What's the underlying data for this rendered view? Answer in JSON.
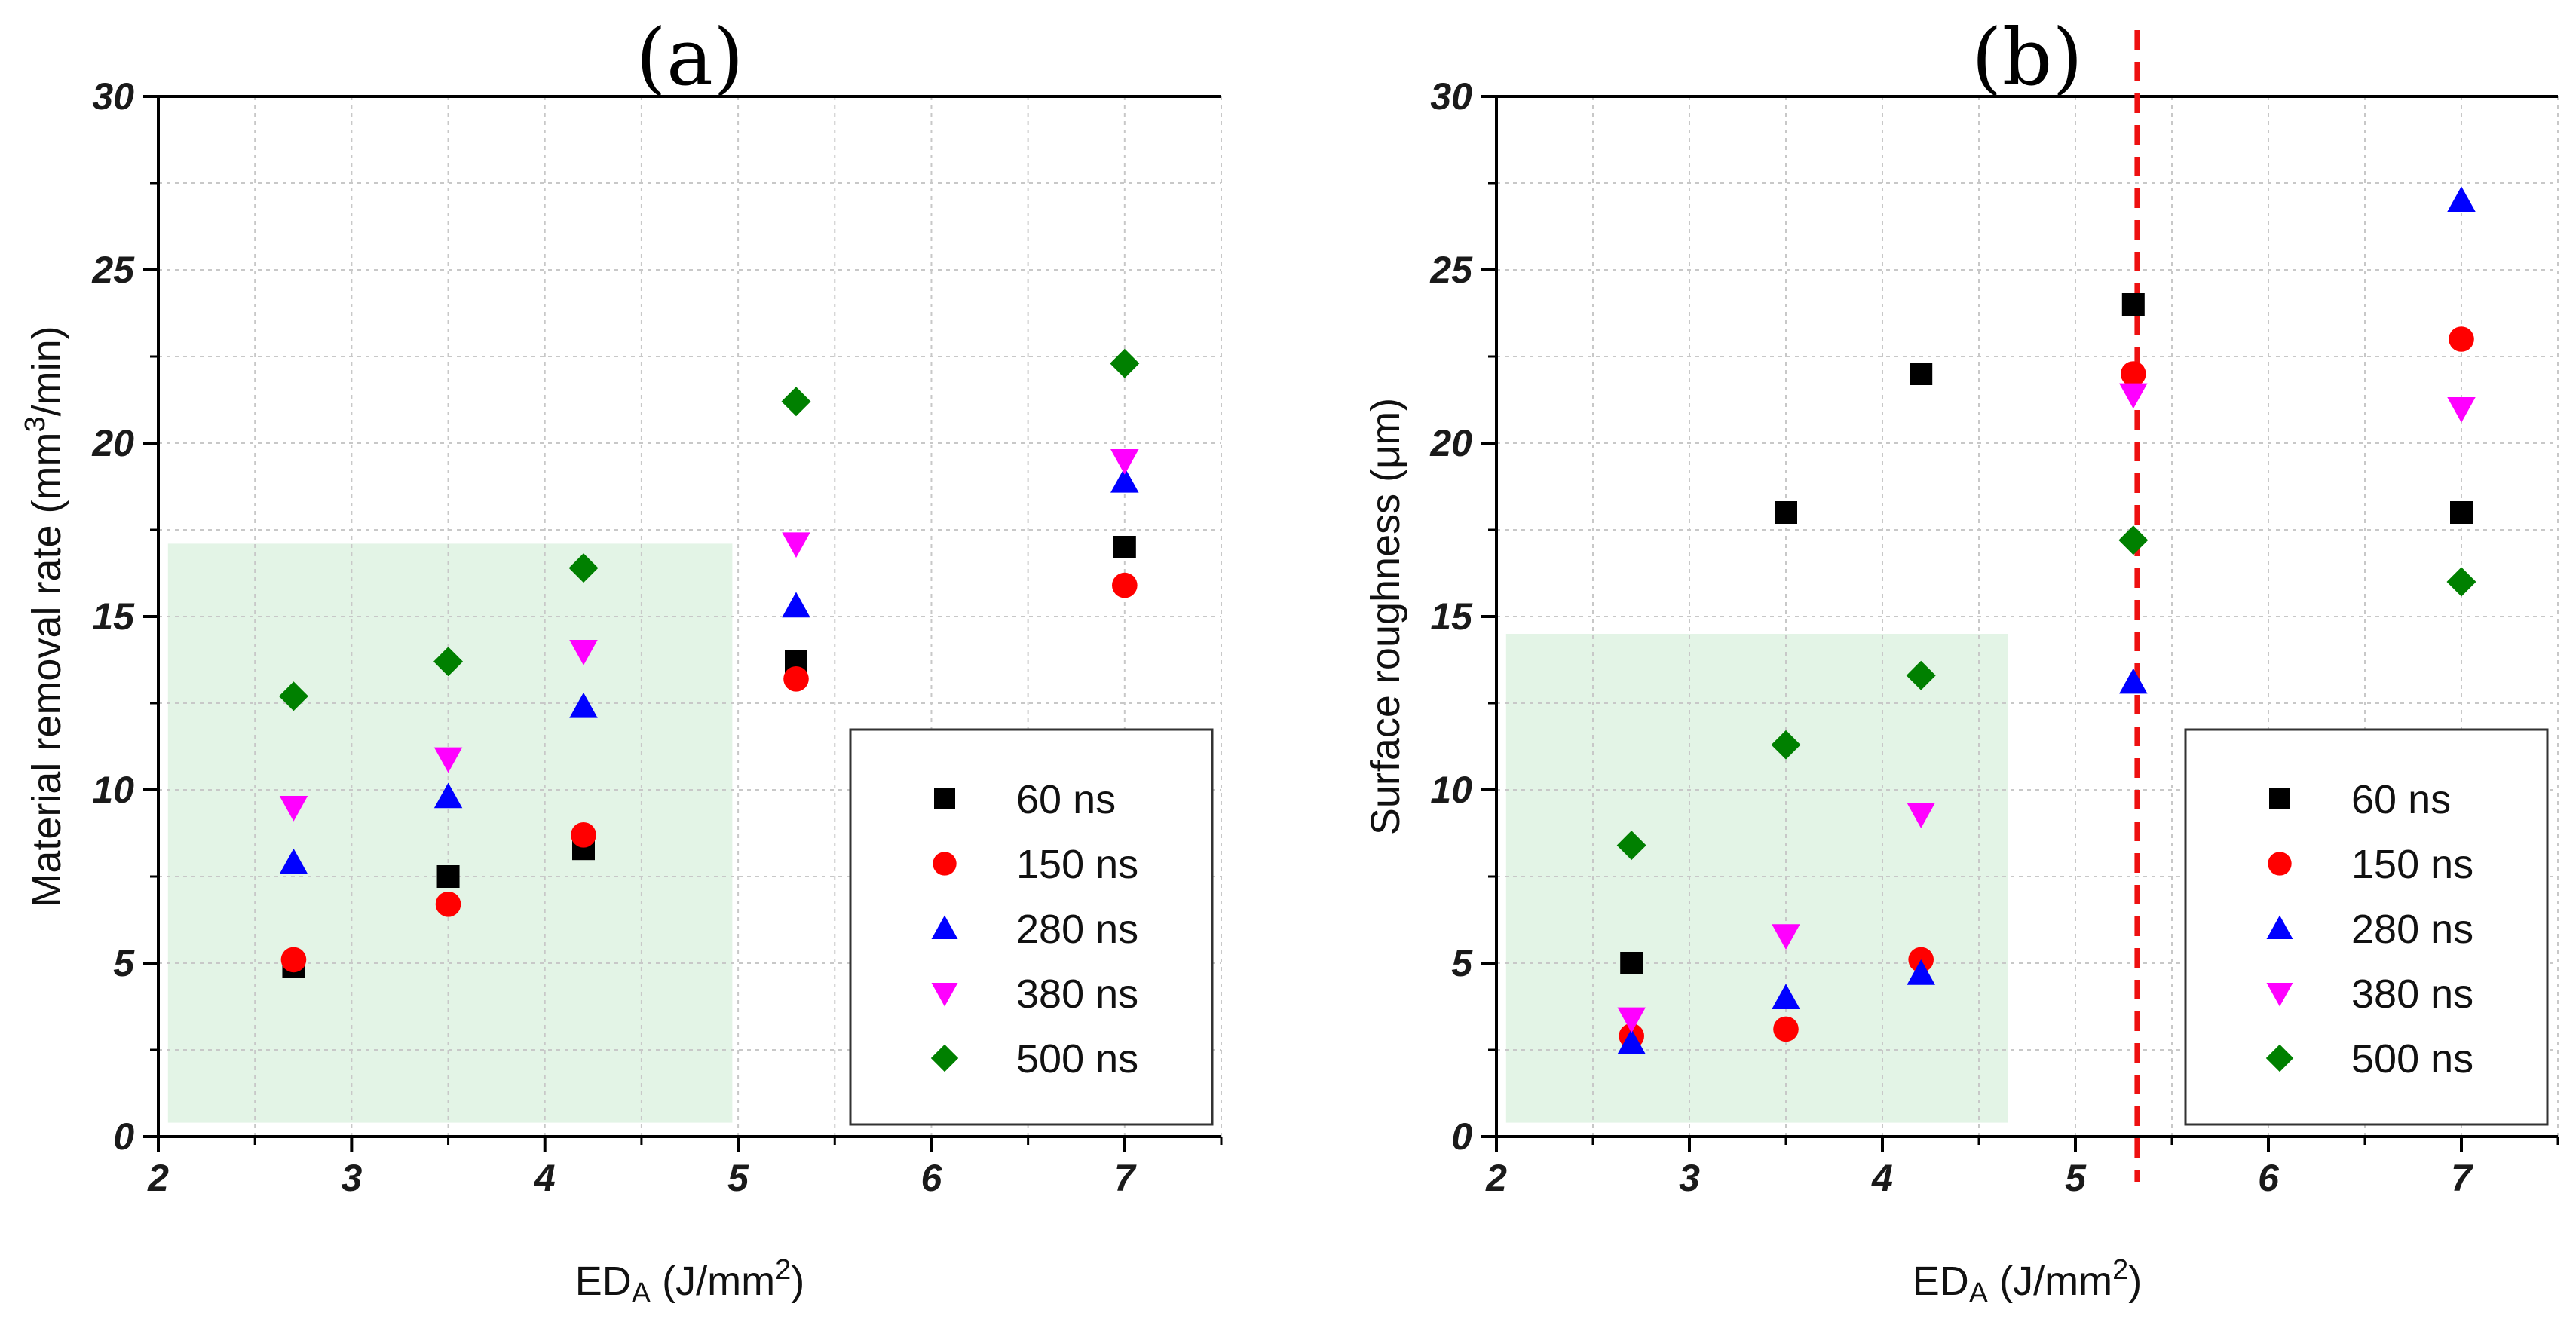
{
  "chart_data": [
    {
      "type": "scatter",
      "panel_label": "(a)",
      "title": "",
      "xlabel_main": "ED",
      "xlabel_sub": "A",
      "xlabel_unit_pre": " (J/mm",
      "xlabel_unit_sup": "2",
      "xlabel_unit_post": ")",
      "ylabel_pre": "Material removal rate (mm",
      "ylabel_sup": "3",
      "ylabel_post": "/min)",
      "xlim": [
        2,
        7.5
      ],
      "ylim": [
        0,
        30
      ],
      "xticks": [
        2,
        3,
        4,
        5,
        6,
        7
      ],
      "yticks": [
        0,
        5,
        10,
        15,
        20,
        25,
        30
      ],
      "x_tick_labels": [
        "2",
        "3",
        "4",
        "5",
        "6",
        "7"
      ],
      "y_tick_labels": [
        "0",
        "5",
        "10",
        "15",
        "20",
        "25",
        "30"
      ],
      "grid": true,
      "legend_position": "bottom-right",
      "shaded_region": {
        "x": [
          2.05,
          4.97
        ],
        "y": [
          0.4,
          17.1
        ],
        "color": "#e3f4e6"
      },
      "vline": null,
      "series": [
        {
          "name": "60 ns",
          "marker": "square",
          "color": "#000000",
          "x": [
            2.7,
            3.5,
            4.2,
            5.3,
            7.0
          ],
          "y": [
            4.9,
            7.5,
            8.3,
            13.7,
            17.0
          ]
        },
        {
          "name": "150 ns",
          "marker": "circle",
          "color": "#ff0000",
          "x": [
            2.7,
            3.5,
            4.2,
            5.3,
            7.0
          ],
          "y": [
            5.1,
            6.7,
            8.7,
            13.2,
            15.9
          ]
        },
        {
          "name": "280 ns",
          "marker": "triangle-up",
          "color": "#0000ff",
          "x": [
            2.7,
            3.5,
            4.2,
            5.3,
            7.0
          ],
          "y": [
            7.9,
            9.8,
            12.4,
            15.3,
            18.9
          ]
        },
        {
          "name": "380 ns",
          "marker": "triangle-down",
          "color": "#ff00ff",
          "x": [
            2.7,
            3.5,
            4.2,
            5.3,
            7.0
          ],
          "y": [
            9.5,
            10.9,
            14.0,
            17.1,
            19.5
          ]
        },
        {
          "name": "500 ns",
          "marker": "diamond",
          "color": "#008000",
          "x": [
            2.7,
            3.5,
            4.2,
            5.3,
            7.0
          ],
          "y": [
            12.7,
            13.7,
            16.4,
            21.2,
            22.3
          ]
        }
      ]
    },
    {
      "type": "scatter",
      "panel_label": "(b)",
      "title": "",
      "xlabel_main": "ED",
      "xlabel_sub": "A",
      "xlabel_unit_pre": " (J/mm",
      "xlabel_unit_sup": "2",
      "xlabel_unit_post": ")",
      "ylabel_pre": "Surface roughness (μm)",
      "ylabel_sup": "",
      "ylabel_post": "",
      "xlim": [
        2,
        7.5
      ],
      "ylim": [
        0,
        30
      ],
      "xticks": [
        2,
        3,
        4,
        5,
        6,
        7
      ],
      "yticks": [
        0,
        5,
        10,
        15,
        20,
        25,
        30
      ],
      "x_tick_labels": [
        "2",
        "3",
        "4",
        "5",
        "6",
        "7"
      ],
      "y_tick_labels": [
        "0",
        "5",
        "10",
        "15",
        "20",
        "25",
        "30"
      ],
      "grid": true,
      "legend_position": "bottom-right",
      "shaded_region": {
        "x": [
          2.05,
          4.65
        ],
        "y": [
          0.4,
          14.5
        ],
        "color": "#e3f4e6"
      },
      "vline": {
        "x": 5.32,
        "color": "#ee1111"
      },
      "series": [
        {
          "name": "60 ns",
          "marker": "square",
          "color": "#000000",
          "x": [
            2.7,
            3.5,
            4.2,
            5.3,
            7.0
          ],
          "y": [
            5.0,
            18.0,
            22.0,
            24.0,
            18.0
          ]
        },
        {
          "name": "150 ns",
          "marker": "circle",
          "color": "#ff0000",
          "x": [
            2.7,
            3.5,
            4.2,
            5.3,
            7.0
          ],
          "y": [
            2.9,
            3.1,
            5.1,
            22.0,
            23.0
          ]
        },
        {
          "name": "280 ns",
          "marker": "triangle-up",
          "color": "#0000ff",
          "x": [
            2.7,
            3.5,
            4.2,
            5.3,
            7.0
          ],
          "y": [
            2.7,
            4.0,
            4.7,
            13.1,
            27.0
          ]
        },
        {
          "name": "380 ns",
          "marker": "triangle-down",
          "color": "#ff00ff",
          "x": [
            2.7,
            3.5,
            4.2,
            5.3,
            7.0
          ],
          "y": [
            3.4,
            5.8,
            9.3,
            21.4,
            21.0
          ]
        },
        {
          "name": "500 ns",
          "marker": "diamond",
          "color": "#008000",
          "x": [
            2.7,
            3.5,
            4.2,
            5.3,
            7.0
          ],
          "y": [
            8.4,
            11.3,
            13.3,
            17.2,
            16.0
          ]
        }
      ]
    }
  ]
}
